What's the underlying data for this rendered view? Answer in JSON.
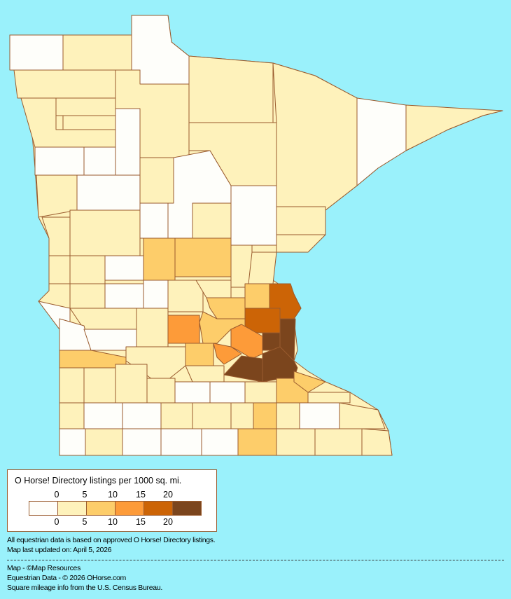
{
  "colors": {
    "background": "#9af1fb",
    "border": "#9a5b2e",
    "bins": [
      "#fefefa",
      "#fef2bb",
      "#fdcd6a",
      "#fd9b39",
      "#cc6406",
      "#7b451d"
    ]
  },
  "legend": {
    "title": "O Horse! Directory listings per 1000 sq. mi.",
    "top_labels": [
      "0",
      "5",
      "10",
      "15",
      "20"
    ],
    "bottom_labels": [
      "0",
      "5",
      "10",
      "15",
      "20"
    ]
  },
  "map": {
    "state_bin": 1,
    "region_bins": [
      0,
      1,
      0,
      1,
      1,
      0,
      1,
      1,
      1,
      1,
      1,
      1,
      0,
      0,
      0,
      1,
      1,
      0,
      0,
      1,
      1,
      1,
      0,
      1,
      1,
      0,
      1,
      2,
      2,
      1,
      1,
      1,
      1,
      0,
      1,
      0,
      0,
      0,
      1,
      1,
      2,
      2,
      4,
      4,
      2,
      3,
      5,
      5,
      5,
      5,
      3,
      2,
      3,
      1,
      1,
      0,
      0,
      2,
      1,
      1,
      1,
      2,
      2,
      1,
      1,
      1,
      1,
      1,
      0,
      0,
      1,
      0,
      0,
      1,
      1,
      1,
      2,
      1,
      0,
      1,
      0,
      1,
      0,
      0,
      0,
      2,
      1
    ]
  },
  "notes": {
    "line1": "All equestrian data is based on approved O Horse! Directory listings.",
    "line2": "Map last updated on: April 5, 2026",
    "credit1": "Map - ©Map Resources",
    "credit2": "Equestrian Data - © 2026 OHorse.com",
    "credit3": "Square mileage info from the U.S. Census Bureau."
  }
}
